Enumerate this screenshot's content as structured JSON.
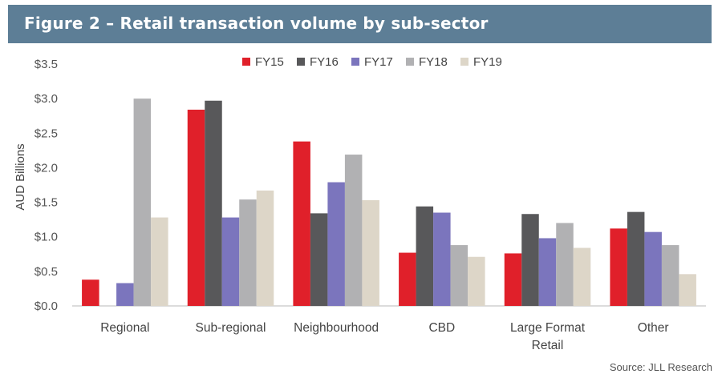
{
  "header": {
    "title": "Figure 2 – Retail transaction volume by sub-sector"
  },
  "source": "Source: JLL Research",
  "chart_data": {
    "type": "bar",
    "title": "Figure 2 – Retail transaction volume by sub-sector",
    "xlabel": "",
    "ylabel": "AUD Billions",
    "ylim": [
      0,
      3.5
    ],
    "yticks": [
      0,
      0.5,
      1.0,
      1.5,
      2.0,
      2.5,
      3.0,
      3.5
    ],
    "ytick_labels": [
      "$0.0",
      "$0.5",
      "$1.0",
      "$1.5",
      "$2.0",
      "$2.5",
      "$3.0",
      "$3.5"
    ],
    "grid": false,
    "legend_position": "top-center",
    "categories": [
      [
        "Regional"
      ],
      [
        "Sub-regional"
      ],
      [
        "Neighbourhood"
      ],
      [
        "CBD"
      ],
      [
        "Large Format",
        "Retail"
      ],
      [
        "Other"
      ]
    ],
    "series": [
      {
        "name": "FY15",
        "color": "#e0202a",
        "values": [
          0.38,
          2.84,
          2.38,
          0.77,
          0.76,
          1.12
        ]
      },
      {
        "name": "FY16",
        "color": "#58585a",
        "values": [
          0.0,
          2.97,
          1.34,
          1.44,
          1.33,
          1.36
        ]
      },
      {
        "name": "FY17",
        "color": "#7b75bd",
        "values": [
          0.33,
          1.28,
          1.79,
          1.35,
          0.98,
          1.07
        ]
      },
      {
        "name": "FY18",
        "color": "#b1b1b3",
        "values": [
          3.0,
          1.54,
          2.19,
          0.88,
          1.2,
          0.88
        ]
      },
      {
        "name": "FY19",
        "color": "#ddd6c8",
        "values": [
          1.28,
          1.67,
          1.53,
          0.71,
          0.84,
          0.46
        ]
      }
    ]
  }
}
